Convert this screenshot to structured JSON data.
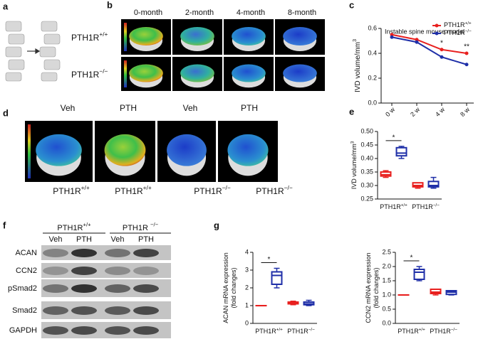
{
  "panels": [
    "a",
    "b",
    "c",
    "d",
    "e",
    "f",
    "g"
  ],
  "b": {
    "columns": [
      "0-month",
      "2-month",
      "4-month",
      "8-month"
    ],
    "rows": [
      {
        "text": "PTH1R",
        "sup": "+/+"
      },
      {
        "text": "PTH1R",
        "sup": "−/−"
      }
    ]
  },
  "d": {
    "columns": [
      "Veh",
      "PTH",
      "Veh",
      "PTH"
    ],
    "groups": [
      {
        "text": "PTH1R",
        "sup": "+/+"
      },
      {
        "text": "PTH1R",
        "sup": "+/+"
      },
      {
        "text": "PTH1R",
        "sup": "−/−"
      },
      {
        "text": "PTH1R",
        "sup": "−/−"
      }
    ]
  },
  "f": {
    "groups": [
      {
        "text": "PTH1R",
        "sup": "+/+"
      },
      {
        "text": "PTH1R ",
        "sup": "−/−"
      }
    ],
    "columns": [
      "Veh",
      "PTH",
      "Veh",
      "PTH"
    ],
    "rows": [
      "ACAN",
      "CCN2",
      "pSmad2",
      "Smad2",
      "GAPDH"
    ]
  },
  "chart_data": [
    {
      "type": "line",
      "title": "Instable spine mouse model",
      "ylabel": {
        "text": "IVD volume/mm",
        "sup": "3"
      },
      "categories": [
        "0 w",
        "2 w",
        "4 w",
        "8 w"
      ],
      "series": [
        {
          "name": {
            "text": "PTH1R",
            "sup": "+/+"
          },
          "color": "#e8201f",
          "values": [
            0.55,
            0.51,
            0.43,
            0.4
          ]
        },
        {
          "name": {
            "text": "PTH1R",
            "sup": "−/−"
          },
          "color": "#1f2fa8",
          "values": [
            0.53,
            0.49,
            0.37,
            0.31
          ]
        }
      ],
      "annotations": [
        {
          "category": 2,
          "text": "*"
        },
        {
          "category": 3,
          "text": "**"
        }
      ],
      "ylim": [
        0,
        0.6
      ],
      "yticks": [
        {
          "value": 0,
          "label": "0.0"
        },
        {
          "value": 0.2,
          "label": "0.2"
        },
        {
          "value": 0.4,
          "label": "0.4"
        },
        {
          "value": 0.6,
          "label": "0.6"
        }
      ],
      "legend": "upper right"
    },
    {
      "type": "box",
      "ylabel": [
        {
          "text": "IVD volume/mm",
          "sup": "3"
        }
      ],
      "categories": [
        {
          "text": "PTH1R",
          "sup": "+/+"
        },
        {
          "text": "PTH1R",
          "sup": "−/−"
        }
      ],
      "boxes": [
        {
          "color": "#e8201f",
          "min": 0.33,
          "q1": 0.335,
          "median": 0.34,
          "q3": 0.35,
          "max": 0.355
        },
        {
          "color": "#1f2fa8",
          "min": 0.4,
          "q1": 0.41,
          "median": 0.42,
          "q3": 0.44,
          "max": 0.445
        },
        {
          "color": "#e8201f",
          "min": 0.29,
          "q1": 0.295,
          "median": 0.3,
          "q3": 0.31,
          "max": 0.31
        },
        {
          "color": "#1f2fa8",
          "min": 0.29,
          "q1": 0.295,
          "median": 0.3,
          "q3": 0.315,
          "max": 0.33
        }
      ],
      "annotation": "*",
      "ylim": [
        0.25,
        0.5
      ],
      "yticks": [
        {
          "value": 0.25,
          "label": "0.25"
        },
        {
          "value": 0.3,
          "label": "0.30"
        },
        {
          "value": 0.35,
          "label": "0.35"
        },
        {
          "value": 0.4,
          "label": "0.40"
        },
        {
          "value": 0.45,
          "label": "0.45"
        },
        {
          "value": 0.5,
          "label": "0.50"
        }
      ]
    },
    {
      "type": "box",
      "ylabel": [
        {
          "text": "ACAN mRNA expression"
        },
        {
          "text": "(fold changes)"
        }
      ],
      "categories": [
        {
          "text": "PTH1R",
          "sup": "+/+"
        },
        {
          "text": "PTH1R",
          "sup": "−/−"
        }
      ],
      "boxes": [
        {
          "color": "#e8201f",
          "min": 1.0,
          "q1": 1.0,
          "median": 1.0,
          "q3": 1.0,
          "max": 1.0
        },
        {
          "color": "#1f2fa8",
          "min": 2.0,
          "q1": 2.2,
          "median": 2.7,
          "q3": 2.9,
          "max": 3.1
        },
        {
          "color": "#e8201f",
          "min": 1.05,
          "q1": 1.1,
          "median": 1.15,
          "q3": 1.2,
          "max": 1.25
        },
        {
          "color": "#1f2fa8",
          "min": 1.0,
          "q1": 1.05,
          "median": 1.1,
          "q3": 1.2,
          "max": 1.3
        }
      ],
      "annotation": "*",
      "ylim": [
        0,
        4
      ],
      "yticks": [
        0,
        1,
        2,
        3,
        4
      ]
    },
    {
      "type": "box",
      "ylabel": [
        {
          "text": "CCN2 mRNA expression"
        },
        {
          "text": "(fold changes)"
        }
      ],
      "categories": [
        {
          "text": "PTH1R",
          "sup": "+/+"
        },
        {
          "text": "PTH1R",
          "sup": "−/−"
        }
      ],
      "boxes": [
        {
          "color": "#e8201f",
          "min": 1.0,
          "q1": 1.0,
          "median": 1.0,
          "q3": 1.0,
          "max": 1.0
        },
        {
          "color": "#1f2fa8",
          "min": 1.5,
          "q1": 1.55,
          "median": 1.8,
          "q3": 1.9,
          "max": 2.0
        },
        {
          "color": "#e8201f",
          "min": 1.0,
          "q1": 1.05,
          "median": 1.1,
          "q3": 1.2,
          "max": 1.2
        },
        {
          "color": "#1f2fa8",
          "min": 1.0,
          "q1": 1.02,
          "median": 1.1,
          "q3": 1.15,
          "max": 1.15
        }
      ],
      "annotation": "*",
      "ylim": [
        0,
        2.5
      ],
      "yticks": [
        {
          "value": 0,
          "label": "0.0"
        },
        {
          "value": 0.5,
          "label": "0.5"
        },
        {
          "value": 1,
          "label": "1.0"
        },
        {
          "value": 1.5,
          "label": "1.5"
        },
        {
          "value": 2,
          "label": "2.0"
        },
        {
          "value": 2.5,
          "label": "2.5"
        }
      ]
    }
  ]
}
